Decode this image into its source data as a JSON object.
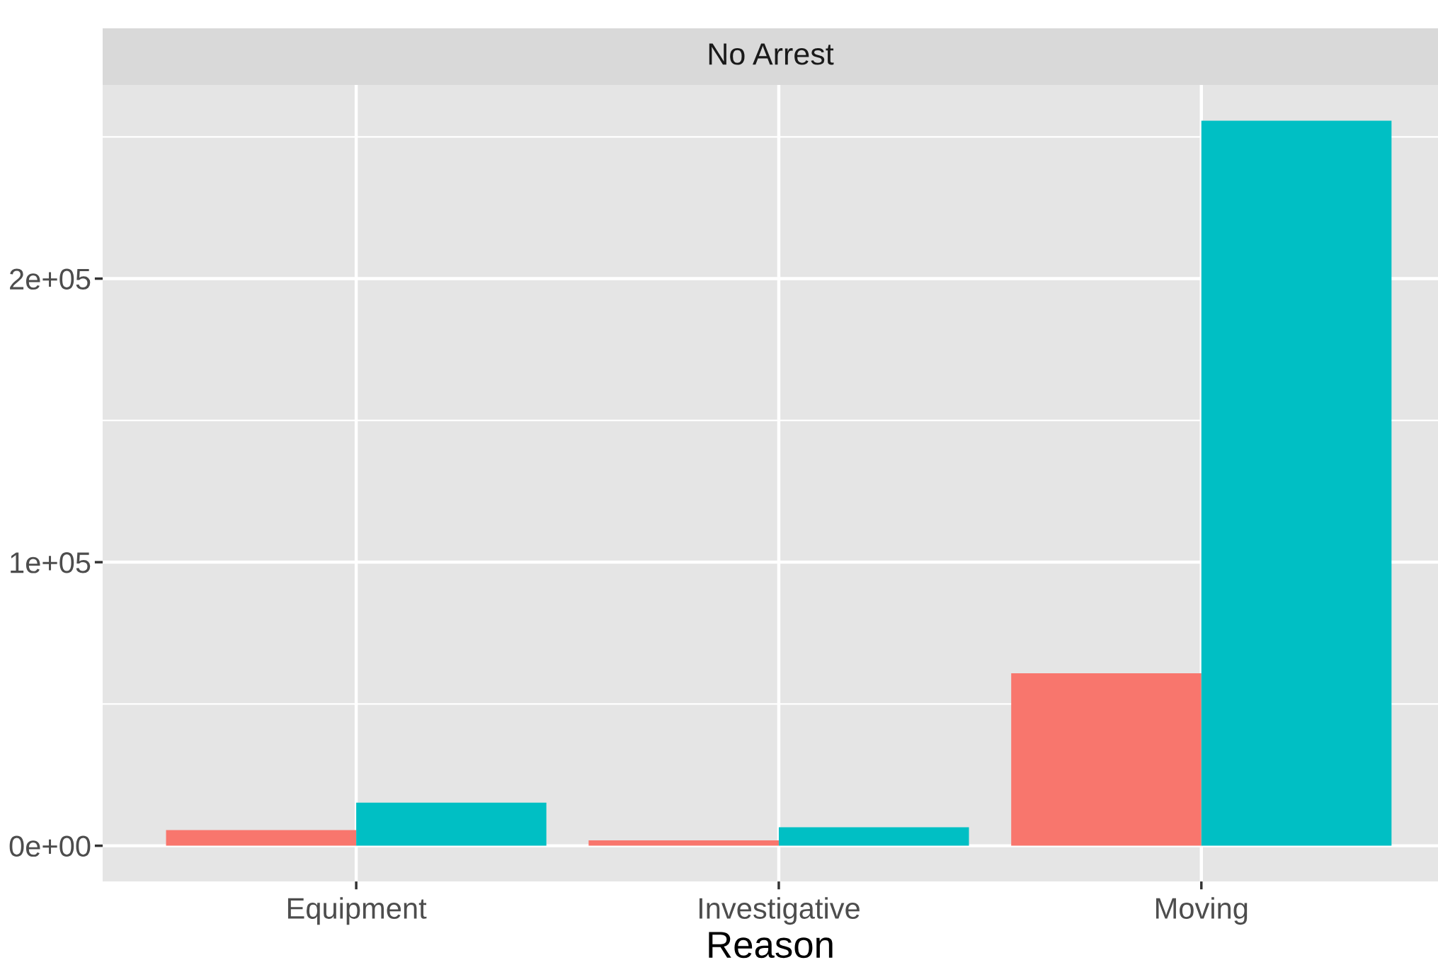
{
  "chart_data": {
    "type": "bar",
    "subtitle": "No Arrest",
    "xlabel": "Reason",
    "categories": [
      "Equipment",
      "Investigative",
      "Moving"
    ],
    "series": [
      {
        "color": "#f8766d",
        "values": [
          5500,
          1900,
          60800
        ]
      },
      {
        "color": "#00bfc4",
        "values": [
          15200,
          6500,
          255700
        ]
      }
    ],
    "ylim": [
      -12600,
      268300
    ],
    "yticks": [
      {
        "value": 0,
        "label": "0e+00"
      },
      {
        "value": 100000,
        "label": "1e+05"
      },
      {
        "value": 200000,
        "label": "2e+05"
      }
    ],
    "grid": true,
    "legend": false
  }
}
